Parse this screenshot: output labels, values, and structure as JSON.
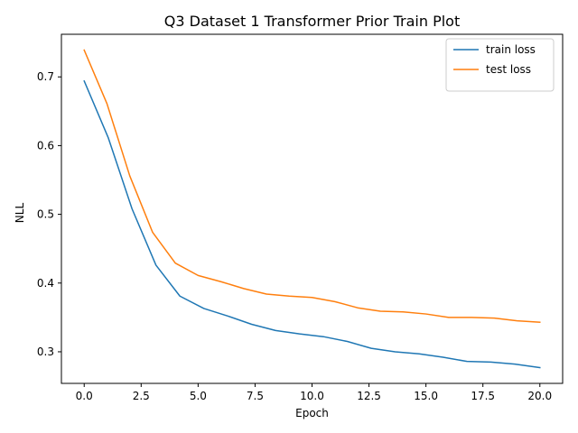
{
  "chart_data": {
    "type": "line",
    "title": "Q3 Dataset 1 Transformer Prior Train Plot",
    "xlabel": "Epoch",
    "ylabel": "NLL",
    "xlim": [
      -1.0,
      21.0
    ],
    "ylim": [
      0.254,
      0.762
    ],
    "xticks": [
      0.0,
      2.5,
      5.0,
      7.5,
      10.0,
      12.5,
      15.0,
      17.5,
      20.0
    ],
    "xtick_labels": [
      "0.0",
      "2.5",
      "5.0",
      "7.5",
      "10.0",
      "12.5",
      "15.0",
      "17.5",
      "20.0"
    ],
    "yticks": [
      0.3,
      0.4,
      0.5,
      0.6,
      0.7
    ],
    "ytick_labels": [
      "0.3",
      "0.4",
      "0.5",
      "0.6",
      "0.7"
    ],
    "grid": false,
    "legend_position": "top-right",
    "series": [
      {
        "name": "train loss",
        "color": "#1f77b4",
        "x": [
          0.0,
          1.05,
          2.1,
          3.15,
          4.2,
          5.25,
          6.3,
          7.35,
          8.4,
          9.45,
          10.5,
          11.55,
          12.6,
          13.65,
          14.7,
          15.75,
          16.8,
          17.85,
          18.9,
          20.0
        ],
        "y": [
          0.694,
          0.612,
          0.508,
          0.426,
          0.381,
          0.363,
          0.352,
          0.34,
          0.331,
          0.326,
          0.322,
          0.315,
          0.305,
          0.3,
          0.297,
          0.292,
          0.286,
          0.285,
          0.282,
          0.277
        ]
      },
      {
        "name": "test loss",
        "color": "#ff7f0e",
        "x": [
          0.0,
          1.0,
          2.0,
          3.0,
          4.0,
          5.0,
          6.0,
          7.0,
          8.0,
          9.0,
          10.0,
          11.0,
          12.0,
          13.0,
          14.0,
          15.0,
          16.0,
          17.0,
          18.0,
          19.0,
          20.0
        ],
        "y": [
          0.739,
          0.661,
          0.556,
          0.474,
          0.429,
          0.411,
          0.402,
          0.392,
          0.384,
          0.381,
          0.379,
          0.373,
          0.364,
          0.359,
          0.358,
          0.355,
          0.35,
          0.35,
          0.349,
          0.345,
          0.343
        ]
      }
    ]
  }
}
